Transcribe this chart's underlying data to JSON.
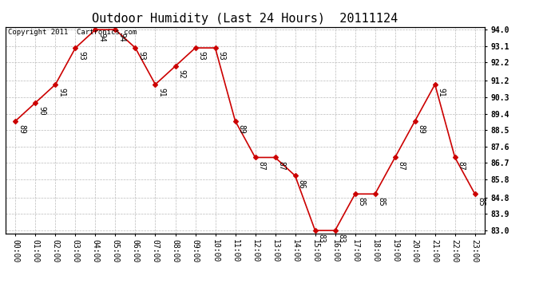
{
  "title": "Outdoor Humidity (Last 24 Hours)  20111124",
  "copyright": "Copyright 2011  Cartronics.com",
  "hours": [
    "00:00",
    "01:00",
    "02:00",
    "03:00",
    "04:00",
    "05:00",
    "06:00",
    "07:00",
    "08:00",
    "09:00",
    "10:00",
    "11:00",
    "12:00",
    "13:00",
    "14:00",
    "15:00",
    "16:00",
    "17:00",
    "18:00",
    "19:00",
    "20:00",
    "21:00",
    "22:00",
    "23:00"
  ],
  "values": [
    89,
    90,
    91,
    93,
    94,
    94,
    93,
    91,
    92,
    93,
    93,
    89,
    87,
    87,
    86,
    83,
    83,
    85,
    85,
    87,
    89,
    91,
    87,
    85
  ],
  "line_color": "#cc0000",
  "marker_color": "#cc0000",
  "bg_color": "#ffffff",
  "grid_color": "#bbbbbb",
  "y_min": 83.0,
  "y_max": 94.0,
  "y_ticks": [
    83.0,
    83.9,
    84.8,
    85.8,
    86.7,
    87.6,
    88.5,
    89.4,
    90.3,
    91.2,
    92.2,
    93.1,
    94.0
  ],
  "title_fontsize": 11,
  "label_fontsize": 7,
  "tick_fontsize": 7,
  "copyright_fontsize": 6.5
}
